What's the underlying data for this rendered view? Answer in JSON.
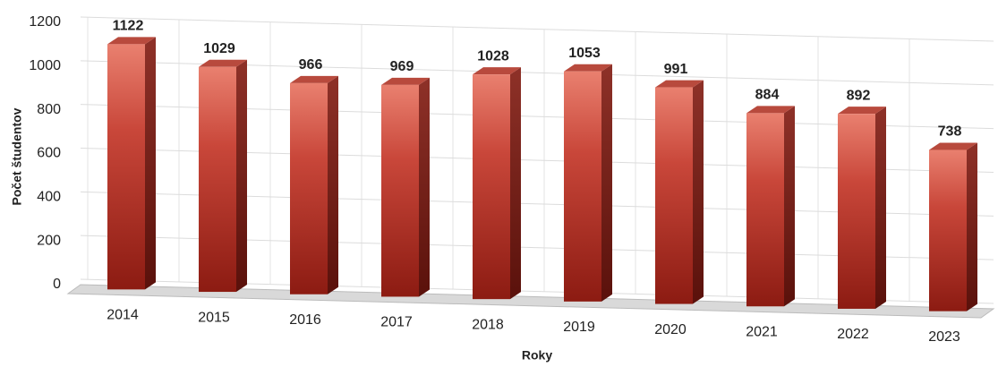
{
  "chart_data": {
    "type": "bar3d",
    "ylabel": "Počet študentov",
    "xlabel": "Roky",
    "categories": [
      "2014",
      "2015",
      "2016",
      "2017",
      "2018",
      "2019",
      "2020",
      "2021",
      "2022",
      "2023"
    ],
    "values": [
      1122,
      1029,
      966,
      969,
      1028,
      1053,
      991,
      884,
      892,
      738
    ],
    "color": "#c0392b",
    "ylim": [
      0,
      1200
    ],
    "yticks": [
      0,
      200,
      400,
      600,
      800,
      1000,
      1200
    ],
    "grid": true
  }
}
